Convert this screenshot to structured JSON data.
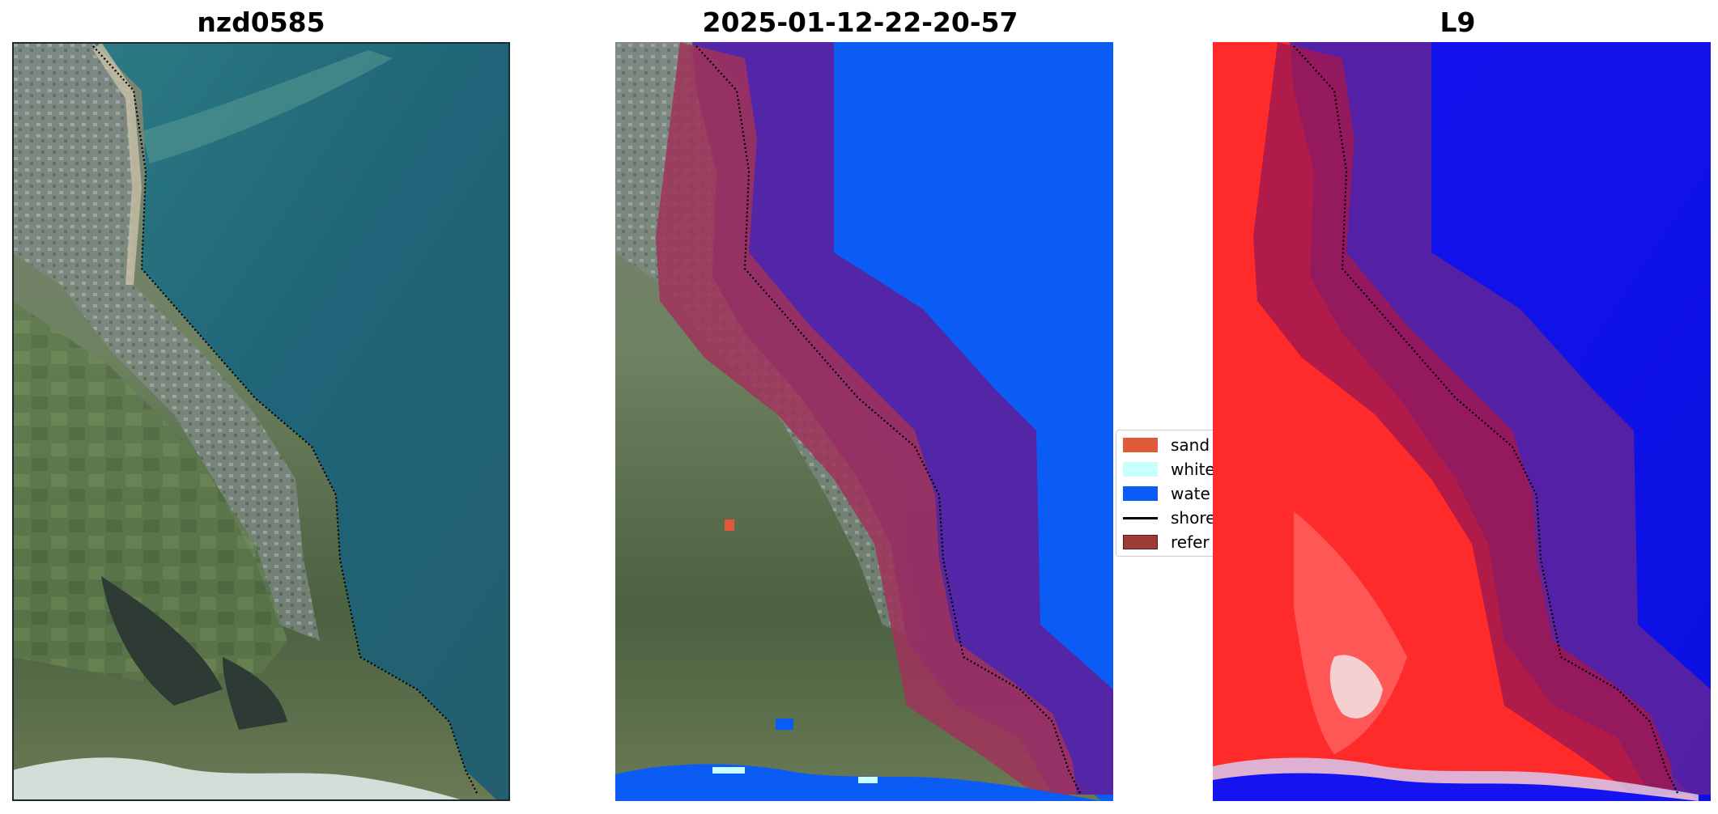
{
  "panels": [
    {
      "title": "nzd0585"
    },
    {
      "title": "2025-01-12-22-20-57"
    },
    {
      "title": "L9"
    }
  ],
  "legend": {
    "items": [
      {
        "label": "sand",
        "type": "patch",
        "color": "#e05a3a"
      },
      {
        "label": "white",
        "type": "patch",
        "color": "#c8ffff"
      },
      {
        "label": "wate",
        "type": "patch",
        "color": "#0a5cf5"
      },
      {
        "label": "shore",
        "type": "line",
        "color": "#000000"
      },
      {
        "label": "refer",
        "type": "patch",
        "color": "#9e3a3a"
      }
    ]
  },
  "colors": {
    "water_class": "#0a5cf5",
    "reference_buffer": "#a0335a",
    "seaward_buffer": "#5a22a0",
    "shoreline": "#000000",
    "index_land": "#ff2a2a",
    "index_water": "#1414f0"
  }
}
